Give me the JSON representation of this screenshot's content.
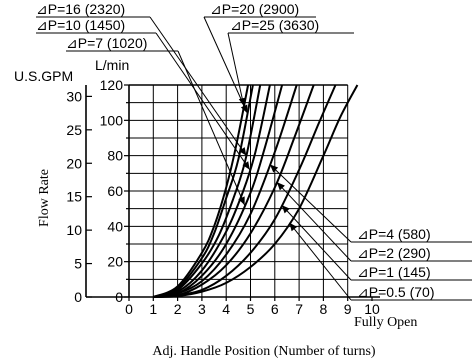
{
  "chart_data": {
    "type": "line",
    "xlabel": "Adj. Handle Position (Number of turns)",
    "x_end_label": "Fully Open",
    "ylabel": "Flow Rate",
    "y_unit_primary": "L/min",
    "y_unit_secondary": "U.S.GPM",
    "xlim": [
      0,
      10
    ],
    "ylim": [
      0,
      120
    ],
    "x_ticks": [
      "0",
      "1",
      "2",
      "3",
      "4",
      "5",
      "6",
      "7",
      "8",
      "9",
      "10"
    ],
    "y_ticks_lmin": [
      "0",
      "20",
      "40",
      "60",
      "80",
      "100",
      "120"
    ],
    "y_ticks_gpm": [
      "0",
      "5",
      "10",
      "15",
      "20",
      "25",
      "30"
    ],
    "grid": true,
    "series": [
      {
        "name": "⊿P=25 (3630)",
        "x": [
          1.0,
          2.0,
          3.0,
          3.5,
          4.0,
          4.4,
          4.9
        ],
        "y": [
          0,
          6,
          25,
          40,
          62,
          85,
          120
        ]
      },
      {
        "name": "⊿P=20 (2900)",
        "x": [
          1.0,
          2.0,
          3.0,
          3.5,
          4.0,
          4.5,
          5.1
        ],
        "y": [
          0,
          5,
          22,
          36,
          56,
          78,
          120
        ]
      },
      {
        "name": "⊿P=16 (2320)",
        "x": [
          1.0,
          2.0,
          3.0,
          3.7,
          4.3,
          4.8,
          5.4
        ],
        "y": [
          0,
          4,
          19,
          35,
          56,
          78,
          120
        ]
      },
      {
        "name": "⊿P=10 (1450)",
        "x": [
          1.0,
          2.0,
          3.0,
          4.0,
          4.7,
          5.2,
          5.8
        ],
        "y": [
          0,
          3,
          15,
          37,
          60,
          82,
          120
        ]
      },
      {
        "name": "⊿P=7 (1020)",
        "x": [
          1.0,
          2.0,
          3.0,
          4.0,
          5.0,
          5.6,
          6.3
        ],
        "y": [
          0,
          2,
          12,
          30,
          59,
          85,
          120
        ]
      },
      {
        "name": "⊿P=4 (580)",
        "x": [
          1.0,
          2.0,
          3.0,
          4.0,
          5.0,
          6.0,
          6.9
        ],
        "y": [
          0,
          2,
          9,
          24,
          47,
          82,
          120
        ]
      },
      {
        "name": "⊿P=2 (290)",
        "x": [
          1.0,
          2.0,
          3.0,
          4.0,
          5.0,
          6.0,
          6.8,
          7.6
        ],
        "y": [
          0,
          1,
          7,
          18,
          36,
          62,
          90,
          120
        ]
      },
      {
        "name": "⊿P=1 (145)",
        "x": [
          1.0,
          2.0,
          3.0,
          4.0,
          5.0,
          6.0,
          7.0,
          7.8,
          8.5
        ],
        "y": [
          0,
          1,
          4,
          12,
          25,
          44,
          72,
          98,
          120
        ]
      },
      {
        "name": "⊿P=0.5 (70)",
        "x": [
          1.0,
          2.0,
          3.0,
          4.0,
          5.0,
          6.0,
          7.0,
          8.0,
          8.7,
          9.4
        ],
        "y": [
          0,
          0.5,
          3,
          8,
          17,
          30,
          50,
          80,
          102,
          120
        ]
      }
    ]
  }
}
